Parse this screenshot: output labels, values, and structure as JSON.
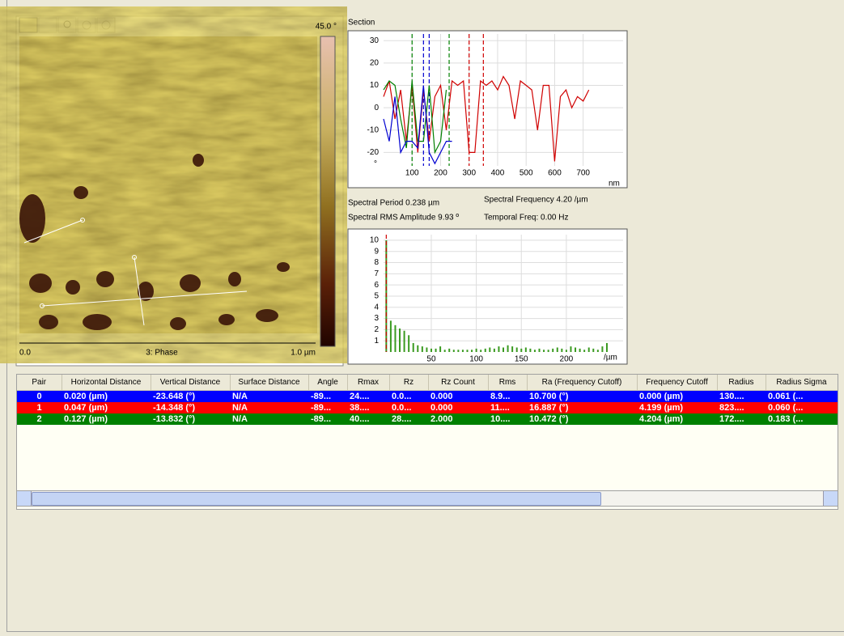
{
  "image_panel": {
    "colorbar_max": "45.0 °",
    "x_start": "0.0",
    "channel": "3: Phase",
    "x_end": "1.0 µm"
  },
  "section_chart": {
    "type": "line",
    "title": "Section",
    "x_unit": "nm",
    "y_unit": "°",
    "xlim": [
      0,
      840
    ],
    "ylim": [
      -26,
      33
    ],
    "xticks": [
      100,
      200,
      300,
      400,
      500,
      600,
      700
    ],
    "yticks": [
      30,
      20,
      10,
      0,
      -10,
      -20
    ],
    "grid": true,
    "series": [
      {
        "color": "#d00000",
        "x": [
          0,
          20,
          40,
          60,
          80,
          100,
          120,
          140,
          160,
          180,
          200,
          220,
          240,
          260,
          280,
          300,
          320,
          340,
          360,
          380,
          400,
          420,
          440,
          460,
          480,
          500,
          520,
          540,
          560,
          580,
          600,
          620,
          640,
          660,
          680,
          700,
          720
        ],
        "values": [
          5,
          12,
          -5,
          8,
          -15,
          10,
          -20,
          8,
          -15,
          5,
          10,
          -10,
          12,
          10,
          12,
          -20,
          -20,
          12,
          10,
          12,
          8,
          14,
          10,
          -5,
          12,
          10,
          8,
          -10,
          10,
          10,
          -24,
          5,
          8,
          0,
          5,
          3,
          8
        ]
      },
      {
        "color": "#008000",
        "x": [
          0,
          20,
          40,
          60,
          80,
          100,
          120,
          140,
          160,
          180,
          200,
          220
        ],
        "values": [
          8,
          12,
          10,
          -5,
          -18,
          12,
          -15,
          -15,
          10,
          -20,
          -15,
          8
        ]
      },
      {
        "color": "#0000d0",
        "x": [
          0,
          20,
          40,
          60,
          80,
          100,
          120,
          140,
          160,
          180,
          200,
          220,
          240
        ],
        "values": [
          -5,
          -15,
          5,
          -20,
          -15,
          -15,
          -18,
          10,
          -20,
          -25,
          -20,
          -15,
          -15
        ]
      }
    ],
    "cursors": [
      {
        "x": 100,
        "color": "#008000"
      },
      {
        "x": 230,
        "color": "#008000"
      },
      {
        "x": 140,
        "color": "#0000d0"
      },
      {
        "x": 160,
        "color": "#0000d0"
      },
      {
        "x": 300,
        "color": "#d00000"
      },
      {
        "x": 350,
        "color": "#d00000"
      }
    ]
  },
  "stats": {
    "period": "Spectral Period 0.238 µm",
    "frequency": "Spectral Frequency 4.20 /µm",
    "rms": "Spectral RMS Amplitude 9.93 º",
    "temporal": "Temporal Freq: 0.00 Hz"
  },
  "spectrum_chart": {
    "type": "bar",
    "x_unit": "/µm",
    "color": "#3a9a20",
    "xlim": [
      -3,
      263
    ],
    "ylim": [
      0,
      10.5
    ],
    "xticks": [
      50,
      100,
      150,
      200
    ],
    "yticks": [
      10,
      9,
      8,
      7,
      6,
      5,
      4,
      3,
      2,
      1
    ],
    "grid": true,
    "x": [
      0,
      5,
      10,
      15,
      20,
      25,
      30,
      35,
      40,
      45,
      50,
      55,
      60,
      65,
      70,
      75,
      80,
      85,
      90,
      95,
      100,
      105,
      110,
      115,
      120,
      125,
      130,
      135,
      140,
      145,
      150,
      155,
      160,
      165,
      170,
      175,
      180,
      185,
      190,
      195,
      200,
      205,
      210,
      215,
      220,
      225,
      230,
      235,
      240,
      245
    ],
    "values": [
      10,
      2.8,
      2.4,
      2.1,
      1.9,
      1.5,
      0.8,
      0.6,
      0.5,
      0.4,
      0.3,
      0.3,
      0.5,
      0.2,
      0.3,
      0.2,
      0.2,
      0.2,
      0.2,
      0.2,
      0.3,
      0.2,
      0.3,
      0.4,
      0.3,
      0.5,
      0.4,
      0.6,
      0.5,
      0.4,
      0.3,
      0.4,
      0.3,
      0.2,
      0.3,
      0.2,
      0.2,
      0.3,
      0.4,
      0.3,
      0.2,
      0.5,
      0.4,
      0.3,
      0.2,
      0.4,
      0.3,
      0.2,
      0.5,
      0.8
    ],
    "cursors": [
      {
        "x": 0,
        "color": "#d00000"
      }
    ]
  },
  "table": {
    "headers": [
      "Pair",
      "Horizontal Distance",
      "Vertical Distance",
      "Surface Distance",
      "Angle",
      "Rmax",
      "Rz",
      "Rz Count",
      "Rms",
      "Ra (Frequency Cutoff)",
      "Frequency Cutoff",
      "Radius",
      "Radius Sigma"
    ],
    "rows": [
      {
        "color": "#0000ff",
        "cells": [
          "0",
          "0.020 (µm)",
          "-23.648 (°)",
          "N/A",
          "-89...",
          "24....",
          "0.0...",
          "0.000",
          "8.9...",
          "10.700 (°)",
          "0.000 (µm)",
          "130....",
          "0.061 (..."
        ]
      },
      {
        "color": "#ff0000",
        "cells": [
          "1",
          "0.047 (µm)",
          "-14.348 (°)",
          "N/A",
          "-89...",
          "38....",
          "0.0...",
          "0.000",
          "11....",
          "16.887 (°)",
          "4.199 (µm)",
          "823....",
          "0.060 (..."
        ]
      },
      {
        "color": "#008000",
        "cells": [
          "2",
          "0.127 (µm)",
          "-13.832 (°)",
          "N/A",
          "-89...",
          "40....",
          "28....",
          "2.000",
          "10....",
          "10.472 (°)",
          "4.204 (µm)",
          "172....",
          "0.183 (..."
        ]
      }
    ]
  }
}
